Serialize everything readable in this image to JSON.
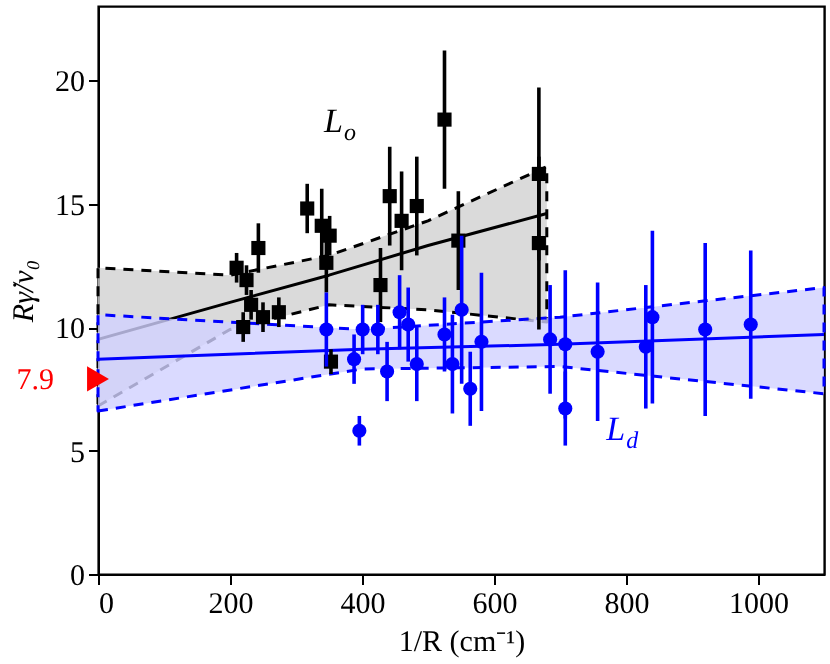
{
  "chart_data": {
    "type": "scatter",
    "xlabel": "1/R (cm⁻¹)",
    "ylabel": "Rγ̇/v₀",
    "xlim": [
      0,
      1100
    ],
    "ylim": [
      0,
      23
    ],
    "xticks": [
      0,
      200,
      400,
      600,
      800,
      1000
    ],
    "yticks": [
      0,
      5,
      10,
      15,
      20
    ],
    "grid": false,
    "series": [
      {
        "type": "line",
        "color": "#000000",
        "marker": "none",
        "line_style": "solid",
        "x": [
          0,
          200,
          350,
          500,
          680
        ],
        "values": [
          9.5,
          11.0,
          12.1,
          13.3,
          14.6
        ],
        "lower": [
          6.8,
          9.9,
          10.9,
          10.7,
          10.2
        ],
        "upper": [
          12.4,
          12.1,
          12.9,
          14.3,
          16.5
        ]
      },
      {
        "type": "line",
        "color": "#0000ff",
        "marker": "none",
        "line_style": "solid",
        "x": [
          0,
          400,
          700,
          1100
        ],
        "values": [
          8.7,
          9.1,
          9.3,
          9.7
        ],
        "lower": [
          6.6,
          8.3,
          8.4,
          7.3
        ],
        "upper": [
          10.5,
          9.9,
          10.4,
          11.6
        ]
      },
      {
        "color": "#000000",
        "marker": "square",
        "x": [
          210,
          225,
          232,
          243,
          250,
          274,
          220,
          317,
          351,
          353
        ],
        "values": [
          12.4,
          11.9,
          10.9,
          13.2,
          10.4,
          10.6,
          10.0,
          14.8,
          13.7,
          8.6
        ],
        "errors": [
          0.6,
          0.6,
          0.6,
          1.0,
          0.6,
          0.6,
          0.6,
          1.0,
          0.8,
          0.5
        ]
      },
      {
        "color": "#000000",
        "marker": "square",
        "x": [
          339,
          346,
          428,
          442,
          460,
          483,
          525,
          546,
          668,
          668
        ],
        "values": [
          14.1,
          12.6,
          11.7,
          15.3,
          14.3,
          14.9,
          18.4,
          13.5,
          16.2,
          13.4
        ],
        "errors": [
          1.5,
          1.2,
          1.5,
          2.0,
          2.0,
          2.0,
          2.8,
          2.0,
          3.5,
          3.5
        ]
      },
      {
        "color": "#0000ff",
        "marker": "circle",
        "x": [
          346,
          396,
          438,
          470,
          483,
          525,
          564,
          685,
          708,
          757,
          830,
          840,
          920
        ],
        "values": [
          9.9,
          5.8,
          8.2,
          10.1,
          8.5,
          9.7,
          7.5,
          9.5,
          6.7,
          9.0,
          9.2,
          10.4,
          9.9
        ],
        "errors": [
          1.5,
          0.6,
          1.2,
          1.5,
          1.5,
          1.5,
          1.5,
          2.2,
          1.5,
          2.8,
          2.5,
          3.5,
          3.5
        ]
      },
      {
        "color": "#0000ff",
        "marker": "circle",
        "x": [
          388,
          401,
          424,
          457,
          537,
          551,
          581,
          708,
          989
        ],
        "values": [
          8.7,
          9.9,
          9.9,
          10.6,
          8.5,
          10.7,
          9.4,
          9.3,
          10.1
        ],
        "errors": [
          1.0,
          1.0,
          1.0,
          1.5,
          2.0,
          3.0,
          2.8,
          3.0,
          3.0
        ]
      }
    ],
    "annotations": [
      "L$_{o}$",
      "L$_{d}$",
      {
        "text": "7.9",
        "x": 0,
        "y": 7.9
      }
    ]
  }
}
